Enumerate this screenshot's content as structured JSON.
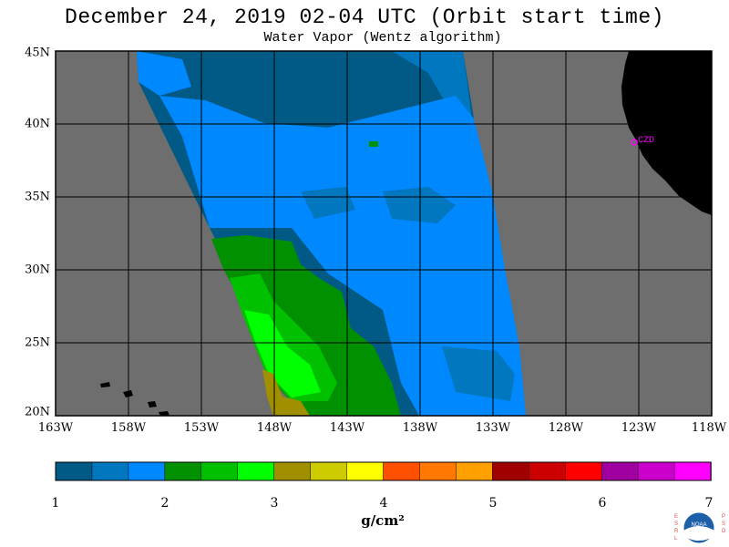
{
  "title": "December 24, 2019  02-04 UTC  (Orbit start time)",
  "subtitle": "Water Vapor (Wentz algorithm)",
  "lat_labels": [
    "45N",
    "40N",
    "35N",
    "30N",
    "25N",
    "20N"
  ],
  "lon_labels": [
    "163W",
    "158W",
    "153W",
    "148W",
    "143W",
    "138W",
    "133W",
    "128W",
    "123W",
    "118W"
  ],
  "station_label": "CZD",
  "colorbar": {
    "ticks": [
      "1",
      "2",
      "3",
      "4",
      "5",
      "6",
      "7"
    ],
    "unit": "g/cm²",
    "colors": [
      "#005a85",
      "#0077be",
      "#0088ff",
      "#009000",
      "#00c000",
      "#00ff00",
      "#a09000",
      "#cccc00",
      "#ffff00",
      "#ff5000",
      "#ff7800",
      "#ffa000",
      "#a00000",
      "#cc0000",
      "#ff0000",
      "#a000a0",
      "#cc00cc",
      "#ff00ff"
    ]
  },
  "logo": {
    "left_letters": "ESRL",
    "right_letters": "PSD",
    "center": "NOAA"
  },
  "map_colors": {
    "no_data": "#6e6e6e",
    "land": "#000000",
    "station": "#ff00ff"
  }
}
